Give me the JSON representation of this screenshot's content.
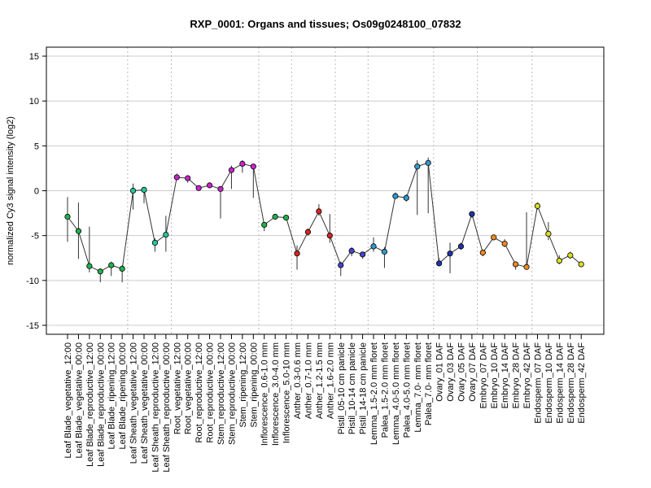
{
  "chart_data": {
    "type": "line",
    "title": "RXP_0001: Organs and tissues; Os09g0248100_07832",
    "ylabel": "normalized Cy3 signal intensity (log2)",
    "xlabel": "",
    "ylim": [
      -16,
      16
    ],
    "yticks": [
      -15,
      -10,
      -5,
      0,
      5,
      10,
      15
    ],
    "grid": true,
    "categories": [
      "Leaf Blade_vegetative_12:00",
      "Leaf Blade_vegetative_00:00",
      "Leaf Blade_reproductive_12:00",
      "Leaf Blade_reproductive_00:00",
      "Leaf Blade_ripening_12:00",
      "Leaf Blade_ripening_00:00",
      "Leaf Sheath_vegetative_12:00",
      "Leaf Sheath_vegetative_00:00",
      "Leaf Sheath_reproductive_12:00",
      "Leaf Sheath_reproductive_00:00",
      "Root_vegetative_12:00",
      "Root_vegetative_00:00",
      "Root_reproductive_12:00",
      "Root_reproductive_00:00",
      "Stem_reproductive_12:00",
      "Stem_reproductive_00:00",
      "Stem_ripening_12:00",
      "Stem_ripening_00:00",
      "Inflorescence_0.6-1.0 mm",
      "Inflorescence_3.0-4.0 mm",
      "Inflorescence_5.0-10 mm",
      "Anther_0.3-0.6 mm",
      "Anther_0.7-1.0 mm",
      "Anther_1.2-1.5 mm",
      "Anther_1.6-2.0 mm",
      "Pistil_05-10 cm panicle",
      "Pistil_10-14 cm panicle",
      "Pistil_14-18 cm panicle",
      "Lemma_1.5-2.0 mm floret",
      "Palea_1.5-2.0 mm floret",
      "Lemma_4.0-5.0 mm floret",
      "Palea_4.0-5.0 mm floret",
      "Lemma_7.0- mm floret",
      "Palea_7.0- mm floret",
      "Ovary_01 DAF",
      "Ovary_03 DAF",
      "Ovary_05 DAF",
      "Ovary_07 DAF",
      "Embryo_07 DAF",
      "Embryo_10 DAF",
      "Embryo_14 DAF",
      "Embryo_28 DAF",
      "Embryo_42 DAF",
      "Endosperm_07 DAF",
      "Endosperm_10 DAF",
      "Endosperm_14 DAF",
      "Endosperm_28 DAF",
      "Endosperm_42 DAF"
    ],
    "values": [
      -2.9,
      -4.5,
      -8.4,
      -9.0,
      -8.3,
      -8.7,
      0.0,
      0.1,
      -5.8,
      -4.9,
      1.5,
      1.4,
      0.3,
      0.6,
      0.2,
      2.3,
      3.0,
      2.7,
      -3.8,
      -2.9,
      -3.0,
      -7.0,
      -4.6,
      -2.3,
      -5.0,
      -8.3,
      -6.7,
      -7.1,
      -6.2,
      -6.8,
      -0.6,
      -0.8,
      2.7,
      3.1,
      -8.1,
      -7.0,
      -6.2,
      -2.6,
      -6.9,
      -5.2,
      -5.9,
      -8.2,
      -8.5,
      -1.7,
      -4.8,
      -7.8,
      -7.2,
      -8.2
    ],
    "error_low": [
      -5.7,
      -7.6,
      -9.1,
      -10.2,
      -9.5,
      -10.2,
      -2.1,
      -1.4,
      -6.8,
      -6.8,
      1.2,
      0.9,
      0.0,
      0.3,
      -3.1,
      0.2,
      2.0,
      -0.8,
      -4.5,
      -3.2,
      -3.2,
      -8.8,
      -5.0,
      -2.8,
      -5.8,
      -9.5,
      -7.3,
      -7.6,
      -6.8,
      -8.6,
      -0.9,
      -1.2,
      -2.7,
      -2.5,
      -8.3,
      -9.2,
      -6.6,
      -3.0,
      -7.3,
      -5.4,
      -6.3,
      -8.8,
      -8.8,
      -2.1,
      -5.5,
      -8.2,
      -7.6,
      -8.4
    ],
    "error_high": [
      -0.7,
      -1.3,
      -4.0,
      -8.8,
      -7.9,
      -8.3,
      0.8,
      0.4,
      -5.3,
      -2.8,
      1.9,
      1.6,
      0.6,
      0.9,
      0.5,
      2.8,
      3.4,
      3.0,
      -3.5,
      -2.6,
      -2.8,
      -6.1,
      -4.2,
      -1.5,
      -2.6,
      -7.9,
      -6.3,
      -6.8,
      -5.2,
      -6.3,
      -0.2,
      -0.4,
      3.4,
      3.7,
      -7.5,
      -5.8,
      -5.8,
      -2.3,
      -6.6,
      -4.9,
      -5.4,
      -7.9,
      -2.4,
      -1.3,
      -3.5,
      -7.2,
      -6.8,
      -7.9
    ],
    "colors": [
      "#22b14c",
      "#22b14c",
      "#22b14c",
      "#22b14c",
      "#22b14c",
      "#22b14c",
      "#22c99a",
      "#22c99a",
      "#22c99a",
      "#22c99a",
      "#cc22cc",
      "#cc22cc",
      "#cc22cc",
      "#cc22cc",
      "#cc22cc",
      "#cc22cc",
      "#cc22cc",
      "#cc22cc",
      "#22b14c",
      "#22b14c",
      "#22b14c",
      "#dd2222",
      "#dd2222",
      "#dd2222",
      "#dd2222",
      "#4444cc",
      "#4444cc",
      "#4444cc",
      "#3399cc",
      "#3399cc",
      "#3399cc",
      "#3399cc",
      "#3399cc",
      "#3399cc",
      "#2233aa",
      "#2233aa",
      "#2233aa",
      "#2233aa",
      "#ee8822",
      "#ee8822",
      "#ee8822",
      "#ee8822",
      "#ee8822",
      "#dddd22",
      "#dddd22",
      "#dddd22",
      "#dddd22",
      "#dddd22"
    ],
    "group_boundaries_after": [
      5,
      9,
      17,
      20,
      24,
      27,
      33,
      37,
      42
    ]
  }
}
